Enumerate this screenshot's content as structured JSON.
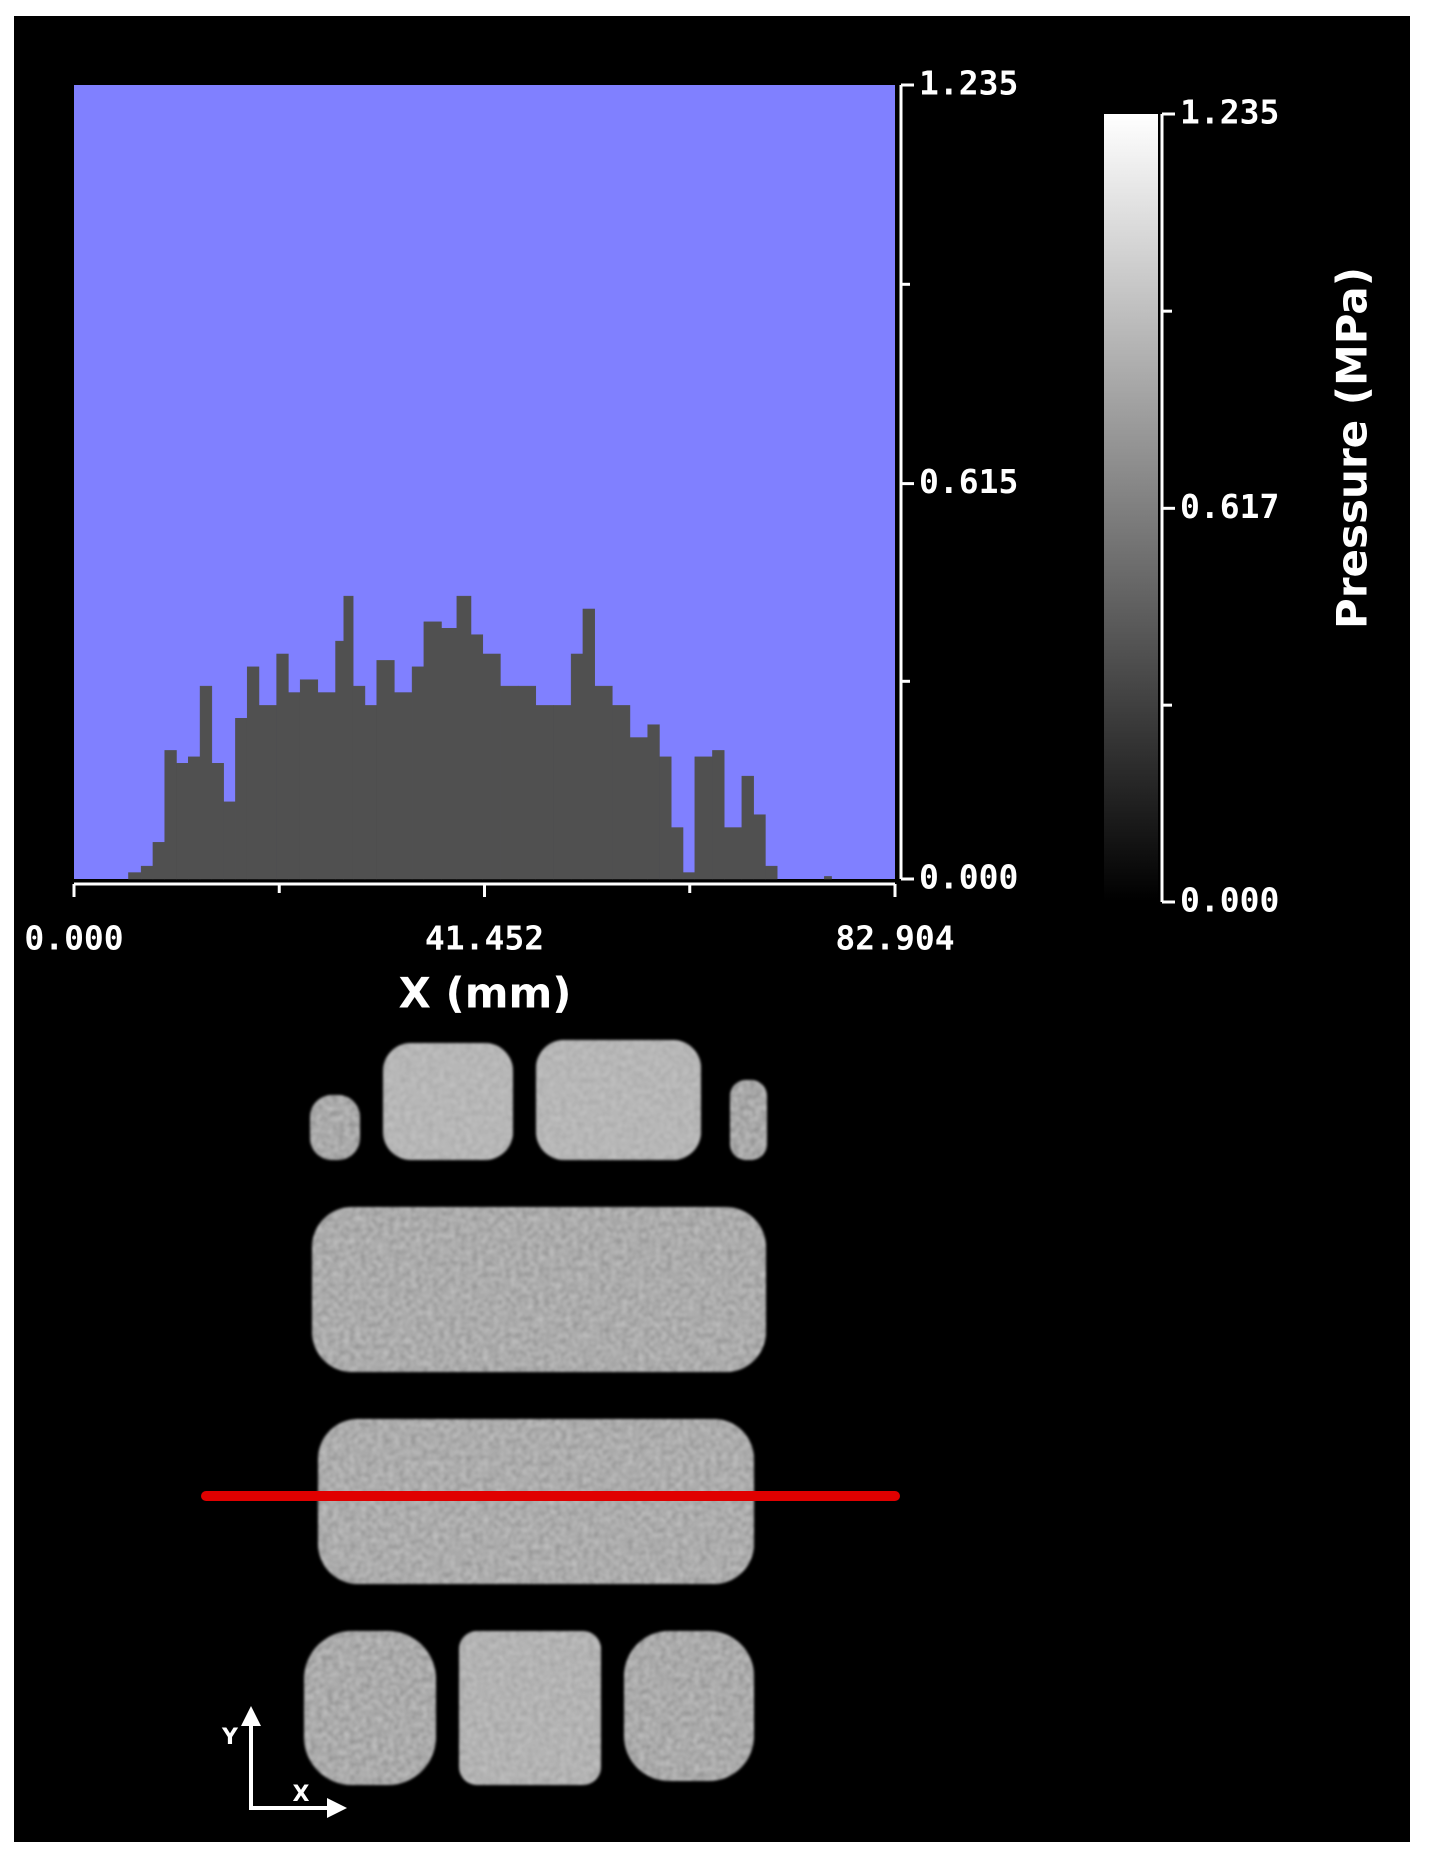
{
  "chart_data": {
    "type": "histogram",
    "x_label": "X (mm)",
    "plot_background": "#8080ff",
    "color": "#505050",
    "bins": [
      0,
      5.5,
      6.78,
      7.97,
      9.16,
      10.35,
      11.54,
      12.73,
      13.92,
      15.11,
      16.3,
      17.49,
      18.68,
      20.46,
      21.65,
      22.84,
      24.62,
      26.41,
      27.24,
      28.19,
      29.38,
      30.57,
      32.35,
      34.14,
      35.33,
      37.11,
      38.66,
      40.09,
      41.28,
      43.06,
      44.85,
      46.63,
      48.42,
      50.2,
      51.39,
      52.58,
      54.36,
      56.14,
      57.93,
      59.12,
      60.31,
      61.5,
      62.69,
      64.47,
      65.66,
      67.44,
      68.63,
      69.82,
      71.01,
      75.77,
      76.5,
      82.904
    ],
    "values": [
      0,
      0.01,
      0.02,
      0.057,
      0.2,
      0.18,
      0.19,
      0.3,
      0.18,
      0.12,
      0.25,
      0.33,
      0.27,
      0.35,
      0.29,
      0.31,
      0.29,
      0.37,
      0.44,
      0.3,
      0.27,
      0.34,
      0.29,
      0.33,
      0.4,
      0.39,
      0.44,
      0.38,
      0.35,
      0.3,
      0.3,
      0.27,
      0.27,
      0.35,
      0.42,
      0.3,
      0.27,
      0.22,
      0.24,
      0.19,
      0.08,
      0.01,
      0.19,
      0.2,
      0.08,
      0.16,
      0.1,
      0.02,
      0,
      0.004,
      0
    ],
    "xlim": [
      0,
      82.904
    ],
    "xticks": [
      {
        "value": 0,
        "label": "0.000"
      },
      {
        "value": 41.452,
        "label": "41.452"
      },
      {
        "value": 82.904,
        "label": "82.904"
      }
    ],
    "x_minor_ticks": [
      20.726,
      62.178
    ],
    "ylim": [
      0,
      1.235
    ],
    "yticks": [
      {
        "value": 0,
        "label": "0.000"
      },
      {
        "value": 0.615,
        "label": "0.615"
      },
      {
        "value": 1.235,
        "label": "1.235"
      }
    ],
    "y_minor_ticks": [
      0.3075,
      0.925
    ],
    "colorbar": {
      "label": "Pressure (MPa)",
      "lim": [
        0,
        1.235
      ],
      "ticks": [
        {
          "value": 0,
          "label": "0.000"
        },
        {
          "value": 0.617,
          "label": "0.617"
        },
        {
          "value": 1.235,
          "label": "1.235"
        }
      ],
      "minor_ticks": [
        0.3085,
        0.926
      ],
      "colors": [
        "#000000",
        "#ffffff"
      ]
    },
    "axes_indicator": {
      "x": "X",
      "y": "Y"
    }
  }
}
